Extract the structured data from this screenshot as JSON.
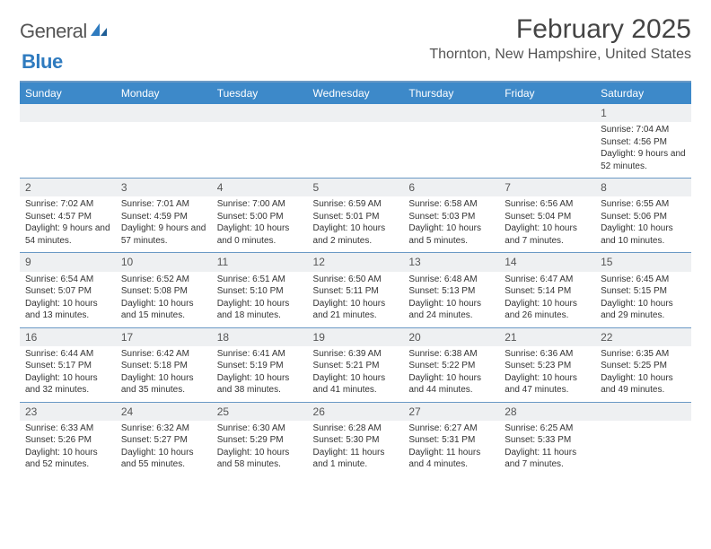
{
  "logo": {
    "word1": "General",
    "word2": "Blue"
  },
  "title": "February 2025",
  "location": "Thornton, New Hampshire, United States",
  "colors": {
    "header_bg": "#3d89c9",
    "header_text": "#ffffff",
    "rule": "#6a99c5",
    "daynum_bg": "#eef0f2",
    "body_text": "#333333"
  },
  "day_headers": [
    "Sunday",
    "Monday",
    "Tuesday",
    "Wednesday",
    "Thursday",
    "Friday",
    "Saturday"
  ],
  "weeks": [
    [
      {
        "num": "",
        "lines": []
      },
      {
        "num": "",
        "lines": []
      },
      {
        "num": "",
        "lines": []
      },
      {
        "num": "",
        "lines": []
      },
      {
        "num": "",
        "lines": []
      },
      {
        "num": "",
        "lines": []
      },
      {
        "num": "1",
        "lines": [
          "Sunrise: 7:04 AM",
          "Sunset: 4:56 PM",
          "Daylight: 9 hours and 52 minutes."
        ]
      }
    ],
    [
      {
        "num": "2",
        "lines": [
          "Sunrise: 7:02 AM",
          "Sunset: 4:57 PM",
          "Daylight: 9 hours and 54 minutes."
        ]
      },
      {
        "num": "3",
        "lines": [
          "Sunrise: 7:01 AM",
          "Sunset: 4:59 PM",
          "Daylight: 9 hours and 57 minutes."
        ]
      },
      {
        "num": "4",
        "lines": [
          "Sunrise: 7:00 AM",
          "Sunset: 5:00 PM",
          "Daylight: 10 hours and 0 minutes."
        ]
      },
      {
        "num": "5",
        "lines": [
          "Sunrise: 6:59 AM",
          "Sunset: 5:01 PM",
          "Daylight: 10 hours and 2 minutes."
        ]
      },
      {
        "num": "6",
        "lines": [
          "Sunrise: 6:58 AM",
          "Sunset: 5:03 PM",
          "Daylight: 10 hours and 5 minutes."
        ]
      },
      {
        "num": "7",
        "lines": [
          "Sunrise: 6:56 AM",
          "Sunset: 5:04 PM",
          "Daylight: 10 hours and 7 minutes."
        ]
      },
      {
        "num": "8",
        "lines": [
          "Sunrise: 6:55 AM",
          "Sunset: 5:06 PM",
          "Daylight: 10 hours and 10 minutes."
        ]
      }
    ],
    [
      {
        "num": "9",
        "lines": [
          "Sunrise: 6:54 AM",
          "Sunset: 5:07 PM",
          "Daylight: 10 hours and 13 minutes."
        ]
      },
      {
        "num": "10",
        "lines": [
          "Sunrise: 6:52 AM",
          "Sunset: 5:08 PM",
          "Daylight: 10 hours and 15 minutes."
        ]
      },
      {
        "num": "11",
        "lines": [
          "Sunrise: 6:51 AM",
          "Sunset: 5:10 PM",
          "Daylight: 10 hours and 18 minutes."
        ]
      },
      {
        "num": "12",
        "lines": [
          "Sunrise: 6:50 AM",
          "Sunset: 5:11 PM",
          "Daylight: 10 hours and 21 minutes."
        ]
      },
      {
        "num": "13",
        "lines": [
          "Sunrise: 6:48 AM",
          "Sunset: 5:13 PM",
          "Daylight: 10 hours and 24 minutes."
        ]
      },
      {
        "num": "14",
        "lines": [
          "Sunrise: 6:47 AM",
          "Sunset: 5:14 PM",
          "Daylight: 10 hours and 26 minutes."
        ]
      },
      {
        "num": "15",
        "lines": [
          "Sunrise: 6:45 AM",
          "Sunset: 5:15 PM",
          "Daylight: 10 hours and 29 minutes."
        ]
      }
    ],
    [
      {
        "num": "16",
        "lines": [
          "Sunrise: 6:44 AM",
          "Sunset: 5:17 PM",
          "Daylight: 10 hours and 32 minutes."
        ]
      },
      {
        "num": "17",
        "lines": [
          "Sunrise: 6:42 AM",
          "Sunset: 5:18 PM",
          "Daylight: 10 hours and 35 minutes."
        ]
      },
      {
        "num": "18",
        "lines": [
          "Sunrise: 6:41 AM",
          "Sunset: 5:19 PM",
          "Daylight: 10 hours and 38 minutes."
        ]
      },
      {
        "num": "19",
        "lines": [
          "Sunrise: 6:39 AM",
          "Sunset: 5:21 PM",
          "Daylight: 10 hours and 41 minutes."
        ]
      },
      {
        "num": "20",
        "lines": [
          "Sunrise: 6:38 AM",
          "Sunset: 5:22 PM",
          "Daylight: 10 hours and 44 minutes."
        ]
      },
      {
        "num": "21",
        "lines": [
          "Sunrise: 6:36 AM",
          "Sunset: 5:23 PM",
          "Daylight: 10 hours and 47 minutes."
        ]
      },
      {
        "num": "22",
        "lines": [
          "Sunrise: 6:35 AM",
          "Sunset: 5:25 PM",
          "Daylight: 10 hours and 49 minutes."
        ]
      }
    ],
    [
      {
        "num": "23",
        "lines": [
          "Sunrise: 6:33 AM",
          "Sunset: 5:26 PM",
          "Daylight: 10 hours and 52 minutes."
        ]
      },
      {
        "num": "24",
        "lines": [
          "Sunrise: 6:32 AM",
          "Sunset: 5:27 PM",
          "Daylight: 10 hours and 55 minutes."
        ]
      },
      {
        "num": "25",
        "lines": [
          "Sunrise: 6:30 AM",
          "Sunset: 5:29 PM",
          "Daylight: 10 hours and 58 minutes."
        ]
      },
      {
        "num": "26",
        "lines": [
          "Sunrise: 6:28 AM",
          "Sunset: 5:30 PM",
          "Daylight: 11 hours and 1 minute."
        ]
      },
      {
        "num": "27",
        "lines": [
          "Sunrise: 6:27 AM",
          "Sunset: 5:31 PM",
          "Daylight: 11 hours and 4 minutes."
        ]
      },
      {
        "num": "28",
        "lines": [
          "Sunrise: 6:25 AM",
          "Sunset: 5:33 PM",
          "Daylight: 11 hours and 7 minutes."
        ]
      },
      {
        "num": "",
        "lines": []
      }
    ]
  ]
}
